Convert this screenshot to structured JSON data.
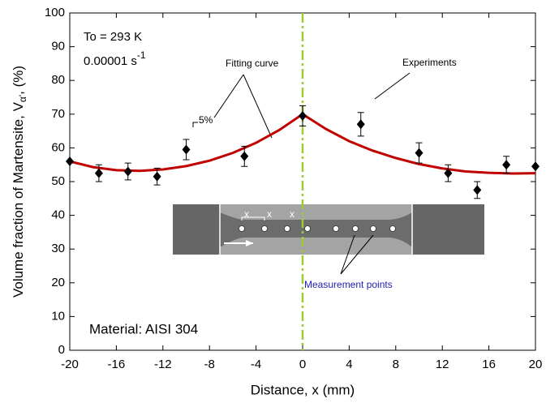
{
  "chart_data": {
    "type": "scatter",
    "y_label": "Volume fraction of Martensite, V",
    "y_label_sub": "α'",
    "y_label_end": ", (%)",
    "x_label": "Distance, x (mm)",
    "annotations": {
      "temperature": "To = 293 K",
      "strain_rate": "0.00001 s",
      "strain_rate_exp": "-1",
      "material": "Material: AISI 304",
      "error_note": "5%",
      "fit_label": "Fitting curve",
      "exp_label": "Experiments",
      "points_label": "Measurement points",
      "photo_marks": [
        "x",
        "x",
        "x"
      ]
    },
    "xlim": [
      -20,
      20
    ],
    "xticks": [
      -20,
      -16,
      -12,
      -8,
      -4,
      0,
      4,
      8,
      12,
      16,
      20
    ],
    "ylim": [
      0,
      100
    ],
    "yticks": [
      0,
      10,
      20,
      30,
      40,
      50,
      60,
      70,
      80,
      90,
      100
    ],
    "vline": 0,
    "vline_color": "#9acd32",
    "series": [
      {
        "name": "Experiments",
        "color": "#000000",
        "x": [
          -20,
          -17.5,
          -15,
          -12.5,
          -10,
          -5,
          0,
          5,
          10,
          12.5,
          15,
          17.5,
          20
        ],
        "values": [
          56,
          52.5,
          53,
          51.5,
          59.5,
          57.5,
          69.5,
          67,
          58.5,
          52.5,
          47.5,
          55,
          54.5
        ],
        "errors": [
          0,
          2.5,
          2.5,
          2.5,
          3,
          3,
          3,
          3.5,
          3,
          2.5,
          2.5,
          2.5,
          0
        ]
      },
      {
        "name": "Fitting curve",
        "color": "#c00000",
        "x": [
          -20,
          -18,
          -16,
          -14,
          -12,
          -10,
          -8,
          -6,
          -4,
          -2,
          0,
          2,
          4,
          6,
          8,
          10,
          12,
          14,
          16,
          18,
          20
        ],
        "values": [
          56,
          54.3,
          53.4,
          53.2,
          53.6,
          54.6,
          56.2,
          58.5,
          61.5,
          65.3,
          70,
          65.6,
          62,
          59.2,
          57,
          55.2,
          53.9,
          53,
          52.6,
          52.4,
          52.5
        ]
      }
    ]
  }
}
